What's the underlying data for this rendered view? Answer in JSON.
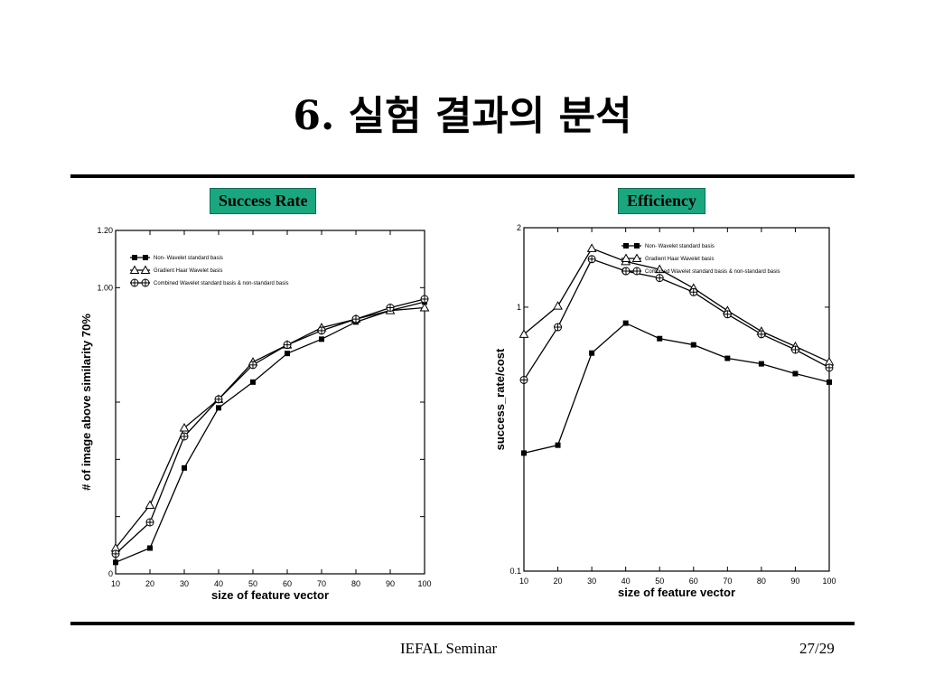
{
  "slide": {
    "title": "6. 실험 결과의 분석",
    "footer_center": "IEFAL Seminar",
    "footer_right": "27/29",
    "accent_color": "#1aa77f"
  },
  "chart_data": [
    {
      "type": "line",
      "title": "Success Rate",
      "xlabel": "size of feature vector",
      "ylabel": "# of image above similarity 70%",
      "x": [
        10,
        20,
        30,
        40,
        50,
        60,
        70,
        80,
        90,
        100
      ],
      "xlim": [
        10,
        100
      ],
      "ylim": [
        0,
        1.2
      ],
      "y_ticks": [
        "0",
        "",
        "",
        "",
        "1.00",
        "1.20"
      ],
      "x_ticks": [
        "10",
        "20",
        "30",
        "40",
        "50",
        "60",
        "70",
        "80",
        "90",
        "100"
      ],
      "legend_position": "top-left",
      "series": [
        {
          "name": "Non- Wavelet standard basis",
          "marker": "square-filled",
          "values": [
            0.04,
            0.09,
            0.37,
            0.58,
            0.67,
            0.77,
            0.82,
            0.88,
            0.92,
            0.95
          ]
        },
        {
          "name": "Gradient Haar Wavelet basis",
          "marker": "triangle-open",
          "values": [
            0.09,
            0.24,
            0.51,
            0.61,
            0.74,
            0.8,
            0.86,
            0.89,
            0.92,
            0.93
          ]
        },
        {
          "name": "Combined Wavelet standard basis & non-standard basis",
          "marker": "circle-cross",
          "values": [
            0.07,
            0.18,
            0.48,
            0.61,
            0.73,
            0.8,
            0.85,
            0.89,
            0.93,
            0.96
          ]
        }
      ]
    },
    {
      "type": "line",
      "title": "Efficiency",
      "xlabel": "size of feature vector",
      "ylabel": "success_rate/cost",
      "x": [
        10,
        20,
        30,
        40,
        50,
        60,
        70,
        80,
        90,
        100
      ],
      "xlim": [
        10,
        100
      ],
      "ylim": [
        0.1,
        2
      ],
      "y_scale": "log",
      "y_ticks": [
        "0.1",
        "1",
        "2"
      ],
      "x_ticks": [
        "10",
        "20",
        "30",
        "40",
        "50",
        "60",
        "70",
        "80",
        "90",
        "100"
      ],
      "legend_position": "top-right",
      "series": [
        {
          "name": "Non- Wavelet standard basis",
          "marker": "square-filled",
          "values": [
            0.28,
            0.3,
            0.67,
            0.87,
            0.76,
            0.72,
            0.64,
            0.61,
            0.56,
            0.52
          ]
        },
        {
          "name": "Gradient Haar Wavelet basis",
          "marker": "triangle-open",
          "values": [
            0.79,
            1.01,
            1.67,
            1.49,
            1.39,
            1.18,
            0.97,
            0.81,
            0.71,
            0.62
          ]
        },
        {
          "name": "Combined Wavelet standard basis & non-standard basis",
          "marker": "circle-cross",
          "values": [
            0.53,
            0.84,
            1.52,
            1.37,
            1.29,
            1.14,
            0.94,
            0.79,
            0.69,
            0.59
          ]
        }
      ]
    }
  ]
}
